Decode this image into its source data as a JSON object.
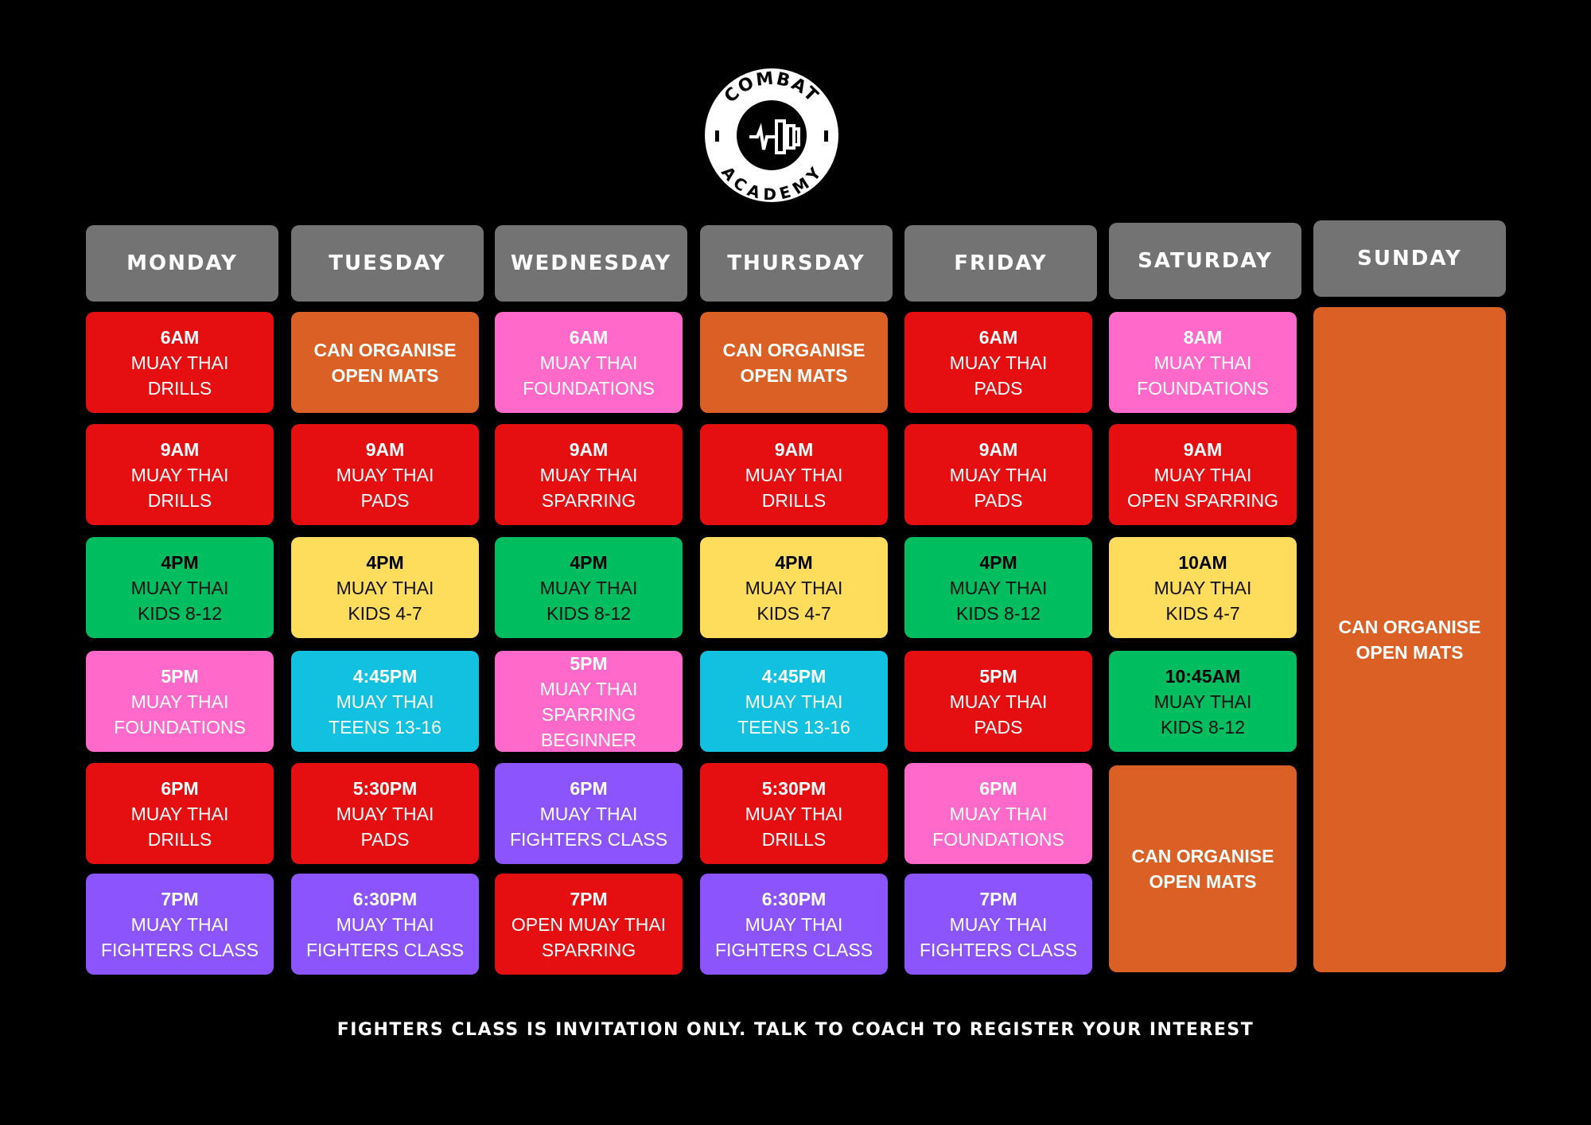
{
  "logo": {
    "text_top": "COMBAT",
    "text_bottom": "ACADEMY"
  },
  "colors": {
    "red": "#e50f12",
    "orange": "#db6026",
    "pink": "#ff69c9",
    "green": "#00bd5f",
    "yellow": "#ffdd5c",
    "cyan": "#12c0e0",
    "purple": "#8b54fc",
    "header": "#737373"
  },
  "days": [
    {
      "name": "MONDAY",
      "classes": [
        {
          "time": "6AM",
          "l1": "MUAY THAI",
          "l2": "DRILLS",
          "color": "red"
        },
        {
          "time": "9AM",
          "l1": "MUAY THAI",
          "l2": "DRILLS",
          "color": "red"
        },
        {
          "time": "4PM",
          "l1": "MUAY THAI",
          "l2": "KIDS 8-12",
          "color": "green"
        },
        {
          "time": "5PM",
          "l1": "MUAY THAI",
          "l2": "FOUNDATIONS",
          "color": "pink"
        },
        {
          "time": "6PM",
          "l1": "MUAY THAI",
          "l2": "DRILLS",
          "color": "red"
        },
        {
          "time": "7PM",
          "l1": "MUAY THAI",
          "l2": "FIGHTERS CLASS",
          "color": "purple"
        }
      ]
    },
    {
      "name": "TUESDAY",
      "classes": [
        {
          "time": "CAN ORGANISE",
          "l1": "OPEN MATS",
          "l2": "",
          "color": "orange",
          "bold": true
        },
        {
          "time": "9AM",
          "l1": "MUAY THAI",
          "l2": "PADS",
          "color": "red"
        },
        {
          "time": "4PM",
          "l1": "MUAY THAI",
          "l2": "KIDS 4-7",
          "color": "yellow"
        },
        {
          "time": "4:45PM",
          "l1": "MUAY THAI",
          "l2": "TEENS 13-16",
          "color": "cyan"
        },
        {
          "time": "5:30PM",
          "l1": "MUAY THAI",
          "l2": "PADS",
          "color": "red"
        },
        {
          "time": "6:30PM",
          "l1": "MUAY THAI",
          "l2": "FIGHTERS CLASS",
          "color": "purple"
        }
      ]
    },
    {
      "name": "WEDNESDAY",
      "classes": [
        {
          "time": "6AM",
          "l1": "MUAY THAI",
          "l2": "FOUNDATIONS",
          "color": "pink"
        },
        {
          "time": "9AM",
          "l1": "MUAY THAI",
          "l2": "SPARRING",
          "color": "red"
        },
        {
          "time": "4PM",
          "l1": "MUAY THAI",
          "l2": "KIDS 8-12",
          "color": "green"
        },
        {
          "time": "5PM",
          "l1": "MUAY THAI",
          "l2": "SPARRING BEGINNER",
          "color": "pink"
        },
        {
          "time": "6PM",
          "l1": "MUAY THAI",
          "l2": "FIGHTERS CLASS",
          "color": "purple"
        },
        {
          "time": "7PM",
          "l1": "OPEN MUAY THAI",
          "l2": "SPARRING",
          "color": "red"
        }
      ]
    },
    {
      "name": "THURSDAY",
      "classes": [
        {
          "time": "CAN ORGANISE",
          "l1": "OPEN MATS",
          "l2": "",
          "color": "orange",
          "bold": true
        },
        {
          "time": "9AM",
          "l1": "MUAY THAI",
          "l2": "DRILLS",
          "color": "red"
        },
        {
          "time": "4PM",
          "l1": "MUAY THAI",
          "l2": "KIDS 4-7",
          "color": "yellow"
        },
        {
          "time": "4:45PM",
          "l1": "MUAY THAI",
          "l2": "TEENS 13-16",
          "color": "cyan"
        },
        {
          "time": "5:30PM",
          "l1": "MUAY THAI",
          "l2": "DRILLS",
          "color": "red"
        },
        {
          "time": "6:30PM",
          "l1": "MUAY THAI",
          "l2": "FIGHTERS CLASS",
          "color": "purple"
        }
      ]
    },
    {
      "name": "FRIDAY",
      "classes": [
        {
          "time": "6AM",
          "l1": "MUAY THAI",
          "l2": "PADS",
          "color": "red"
        },
        {
          "time": "9AM",
          "l1": "MUAY THAI",
          "l2": "PADS",
          "color": "red"
        },
        {
          "time": "4PM",
          "l1": "MUAY THAI",
          "l2": "KIDS 8-12",
          "color": "green"
        },
        {
          "time": "5PM",
          "l1": "MUAY THAI",
          "l2": "PADS",
          "color": "red"
        },
        {
          "time": "6PM",
          "l1": "MUAY THAI",
          "l2": "FOUNDATIONS",
          "color": "pink"
        },
        {
          "time": "7PM",
          "l1": "MUAY THAI",
          "l2": "FIGHTERS CLASS",
          "color": "purple"
        }
      ]
    },
    {
      "name": "SATURDAY",
      "classes": [
        {
          "time": "8AM",
          "l1": "MUAY THAI",
          "l2": "FOUNDATIONS",
          "color": "pink"
        },
        {
          "time": "9AM",
          "l1": "MUAY THAI",
          "l2": "OPEN SPARRING",
          "color": "red"
        },
        {
          "time": "10AM",
          "l1": "MUAY THAI",
          "l2": "KIDS 4-7",
          "color": "yellow"
        },
        {
          "time": "10:45AM",
          "l1": "MUAY THAI",
          "l2": "KIDS 8-12",
          "color": "green"
        }
      ],
      "open_mats": {
        "l1": "CAN ORGANISE",
        "l2": "OPEN MATS",
        "color": "orange"
      }
    },
    {
      "name": "SUNDAY",
      "classes": [],
      "open_mats": {
        "l1": "CAN ORGANISE",
        "l2": "OPEN MATS",
        "color": "orange"
      }
    }
  ],
  "footer": "FIGHTERS CLASS IS INVITATION ONLY. TALK TO COACH TO REGISTER YOUR INTEREST"
}
